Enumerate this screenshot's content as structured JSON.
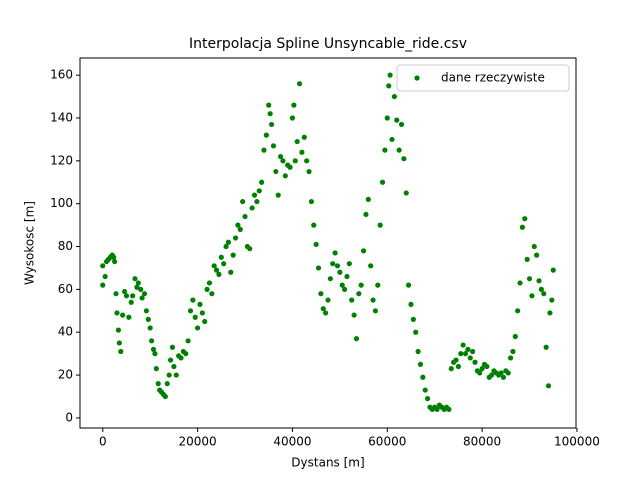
{
  "chart_data": {
    "type": "scatter",
    "title": "Interpolacja Spline Unsyncable_ride.csv",
    "xlabel": "Dystans [m]",
    "ylabel": "Wysokosc [m]",
    "xlim": [
      -4800,
      99800
    ],
    "ylim": [
      -4.7,
      168
    ],
    "xticks": [
      0,
      20000,
      40000,
      60000,
      80000,
      100000
    ],
    "yticks": [
      0,
      20,
      40,
      60,
      80,
      100,
      120,
      140,
      160
    ],
    "legend": "upper right",
    "x": [
      0,
      0,
      500,
      800,
      1200,
      1600,
      2000,
      2300,
      2500,
      2800,
      3000,
      3300,
      3500,
      3800,
      4200,
      4600,
      5000,
      5500,
      6000,
      6300,
      6800,
      7200,
      7500,
      8000,
      8300,
      8800,
      9200,
      9600,
      10000,
      10300,
      10700,
      11000,
      11300,
      11700,
      12000,
      12400,
      12800,
      13200,
      13600,
      14000,
      14300,
      14700,
      15000,
      15500,
      16000,
      16500,
      17000,
      17500,
      18000,
      18500,
      19000,
      19500,
      20000,
      20500,
      21000,
      21500,
      22000,
      22500,
      23000,
      23500,
      24000,
      24500,
      25000,
      25500,
      26000,
      26500,
      27000,
      27500,
      28000,
      28500,
      29000,
      29500,
      30000,
      30500,
      31000,
      31500,
      32000,
      32500,
      33000,
      33500,
      34000,
      34500,
      35000,
      35300,
      35600,
      36000,
      36500,
      37000,
      37500,
      38000,
      38500,
      39000,
      39500,
      40000,
      40300,
      40600,
      41000,
      41500,
      42000,
      42500,
      43000,
      43500,
      44000,
      44500,
      45000,
      45500,
      46000,
      46500,
      47000,
      47500,
      48000,
      48500,
      49000,
      49500,
      50000,
      50500,
      51000,
      51500,
      52000,
      52500,
      53000,
      53500,
      54000,
      54500,
      55000,
      55500,
      56000,
      56500,
      57000,
      57500,
      58000,
      58500,
      59000,
      59500,
      60000,
      60300,
      60600,
      61000,
      61500,
      62000,
      62500,
      63000,
      63500,
      64000,
      64500,
      65000,
      65500,
      66000,
      66500,
      67000,
      67500,
      68000,
      68500,
      69000,
      69500,
      70000,
      70500,
      71000,
      71500,
      72000,
      72500,
      73000,
      73500,
      74000,
      74500,
      75000,
      75500,
      76000,
      76500,
      77000,
      77500,
      78000,
      78500,
      79000,
      79500,
      80000,
      80500,
      81000,
      81500,
      82000,
      82500,
      83000,
      83500,
      84000,
      84500,
      85000,
      85500,
      86000,
      86500,
      87000,
      87500,
      88000,
      88500,
      89000,
      89500,
      90000,
      90500,
      91000,
      91500,
      92000,
      92500,
      93000,
      93500,
      94000,
      94300,
      94700,
      95000
    ],
    "series": [
      {
        "name": "dane rzeczywiste",
        "color": "#008000",
        "values": [
          71,
          62,
          66,
          73,
          74,
          75,
          76,
          75,
          73,
          58,
          49,
          41,
          35,
          31,
          48,
          59,
          57,
          47,
          54,
          57,
          65,
          61,
          63,
          60,
          56,
          58,
          50,
          46,
          42,
          36,
          32,
          30,
          23,
          16,
          13,
          12,
          11,
          10,
          16,
          20,
          27,
          33,
          24,
          20,
          29,
          28,
          31,
          30,
          36,
          50,
          55,
          47,
          42,
          53,
          49,
          45,
          60,
          63,
          58,
          71,
          69,
          67,
          75,
          72,
          80,
          82,
          68,
          76,
          84,
          90,
          88,
          101,
          94,
          80,
          79,
          98,
          104,
          101,
          106,
          110,
          125,
          132,
          146,
          142,
          137,
          127,
          115,
          104,
          122,
          120,
          113,
          118,
          117,
          140,
          146,
          120,
          129,
          156,
          124,
          131,
          120,
          115,
          101,
          90,
          81,
          70,
          58,
          51,
          49,
          55,
          65,
          72,
          77,
          71,
          68,
          62,
          60,
          66,
          72,
          55,
          48,
          37,
          58,
          62,
          78,
          95,
          102,
          71,
          55,
          50,
          62,
          90,
          110,
          125,
          140,
          155,
          160,
          130,
          150,
          139,
          125,
          137,
          121,
          105,
          62,
          53,
          46,
          40,
          31,
          25,
          19,
          13,
          9,
          5,
          4,
          5,
          4,
          6,
          5,
          4,
          5,
          4,
          23,
          26,
          27,
          24,
          30,
          34,
          30,
          32,
          28,
          31,
          26,
          22,
          21,
          23,
          25,
          24,
          19,
          20,
          22,
          21,
          20,
          21,
          19,
          22,
          21,
          28,
          31,
          38,
          50,
          63,
          89,
          93,
          74,
          65,
          57,
          80,
          76,
          64,
          60,
          58,
          33,
          15,
          49,
          55,
          69
        ]
      }
    ]
  }
}
